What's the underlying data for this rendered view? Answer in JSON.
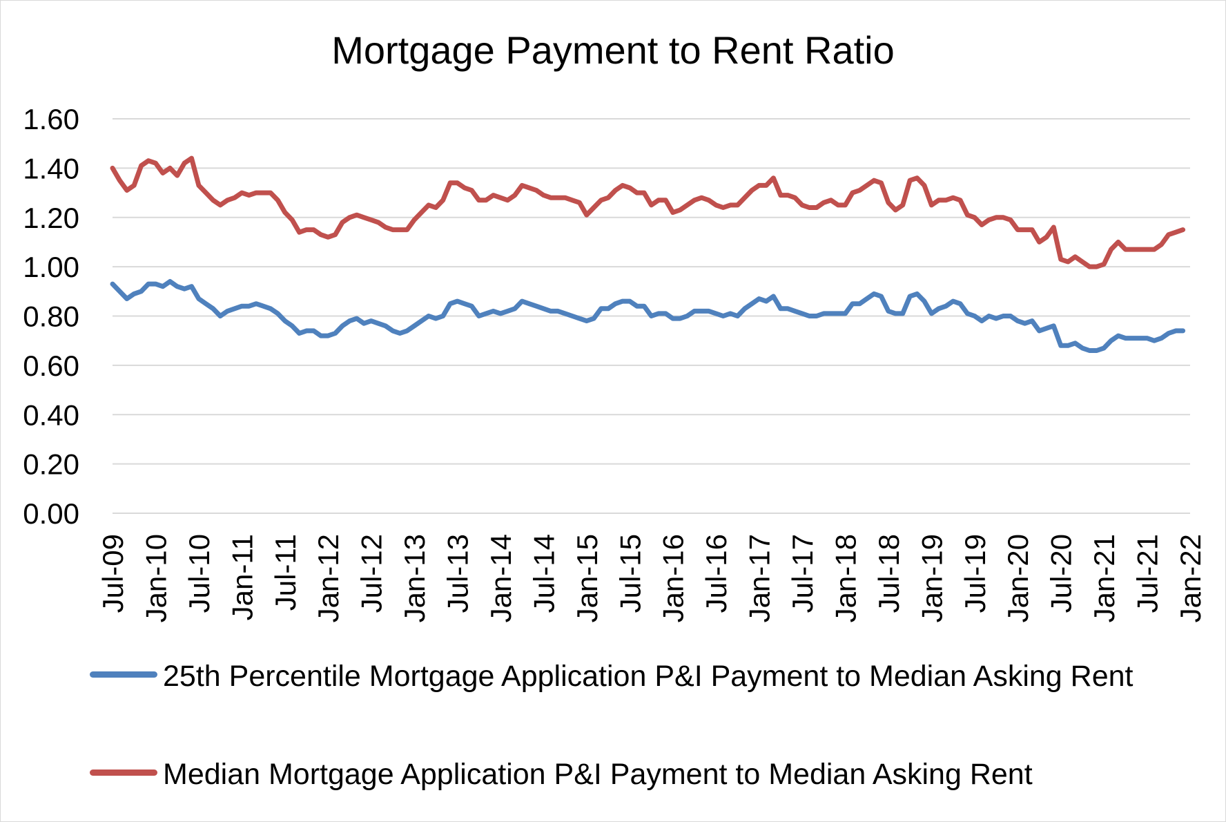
{
  "chart_data": {
    "type": "line",
    "title": "Mortgage Payment to Rent Ratio",
    "xlabel": "",
    "ylabel": "",
    "ylim": [
      0,
      1.6
    ],
    "yticks": [
      "0.00",
      "0.20",
      "0.40",
      "0.60",
      "0.80",
      "1.00",
      "1.20",
      "1.40",
      "1.60"
    ],
    "ytick_values": [
      0,
      0.2,
      0.4,
      0.6,
      0.8,
      1.0,
      1.2,
      1.4,
      1.6
    ],
    "xticks": [
      "Jul-09",
      "Jan-10",
      "Jul-10",
      "Jan-11",
      "Jul-11",
      "Jan-12",
      "Jul-12",
      "Jan-13",
      "Jul-13",
      "Jan-14",
      "Jul-14",
      "Jan-15",
      "Jul-15",
      "Jan-16",
      "Jul-16",
      "Jan-17",
      "Jul-17",
      "Jan-18",
      "Jul-18",
      "Jan-19",
      "Jul-19",
      "Jan-20",
      "Jul-20",
      "Jan-21",
      "Jul-21",
      "Jan-22"
    ],
    "x_start": "Jul-09",
    "x_end": "Dec-21",
    "grid": "horizontal",
    "legend_position": "bottom",
    "series": [
      {
        "name": "25th Percentile Mortgage Application P&I Payment to Median Asking Rent",
        "color": "#4f81bd",
        "values": [
          0.93,
          0.9,
          0.87,
          0.89,
          0.9,
          0.93,
          0.93,
          0.92,
          0.94,
          0.92,
          0.91,
          0.92,
          0.87,
          0.85,
          0.83,
          0.8,
          0.82,
          0.83,
          0.84,
          0.84,
          0.85,
          0.84,
          0.83,
          0.81,
          0.78,
          0.76,
          0.73,
          0.74,
          0.74,
          0.72,
          0.72,
          0.73,
          0.76,
          0.78,
          0.79,
          0.77,
          0.78,
          0.77,
          0.76,
          0.74,
          0.73,
          0.74,
          0.76,
          0.78,
          0.8,
          0.79,
          0.8,
          0.85,
          0.86,
          0.85,
          0.84,
          0.8,
          0.81,
          0.82,
          0.81,
          0.82,
          0.83,
          0.86,
          0.85,
          0.84,
          0.83,
          0.82,
          0.82,
          0.81,
          0.8,
          0.79,
          0.78,
          0.79,
          0.83,
          0.83,
          0.85,
          0.86,
          0.86,
          0.84,
          0.84,
          0.8,
          0.81,
          0.81,
          0.79,
          0.79,
          0.8,
          0.82,
          0.82,
          0.82,
          0.81,
          0.8,
          0.81,
          0.8,
          0.83,
          0.85,
          0.87,
          0.86,
          0.88,
          0.83,
          0.83,
          0.82,
          0.81,
          0.8,
          0.8,
          0.81,
          0.81,
          0.81,
          0.81,
          0.85,
          0.85,
          0.87,
          0.89,
          0.88,
          0.82,
          0.81,
          0.81,
          0.88,
          0.89,
          0.86,
          0.81,
          0.83,
          0.84,
          0.86,
          0.85,
          0.81,
          0.8,
          0.78,
          0.8,
          0.79,
          0.8,
          0.8,
          0.78,
          0.77,
          0.78,
          0.74,
          0.75,
          0.76,
          0.68,
          0.68,
          0.69,
          0.67,
          0.66,
          0.66,
          0.67,
          0.7,
          0.72,
          0.71,
          0.71,
          0.71,
          0.71,
          0.7,
          0.71,
          0.73,
          0.74,
          0.74
        ]
      },
      {
        "name": "Median Mortgage Application P&I Payment to Median Asking Rent",
        "color": "#c0504d",
        "values": [
          1.4,
          1.35,
          1.31,
          1.33,
          1.41,
          1.43,
          1.42,
          1.38,
          1.4,
          1.37,
          1.42,
          1.44,
          1.33,
          1.3,
          1.27,
          1.25,
          1.27,
          1.28,
          1.3,
          1.29,
          1.3,
          1.3,
          1.3,
          1.27,
          1.22,
          1.19,
          1.14,
          1.15,
          1.15,
          1.13,
          1.12,
          1.13,
          1.18,
          1.2,
          1.21,
          1.2,
          1.19,
          1.18,
          1.16,
          1.15,
          1.15,
          1.15,
          1.19,
          1.22,
          1.25,
          1.24,
          1.27,
          1.34,
          1.34,
          1.32,
          1.31,
          1.27,
          1.27,
          1.29,
          1.28,
          1.27,
          1.29,
          1.33,
          1.32,
          1.31,
          1.29,
          1.28,
          1.28,
          1.28,
          1.27,
          1.26,
          1.21,
          1.24,
          1.27,
          1.28,
          1.31,
          1.33,
          1.32,
          1.3,
          1.3,
          1.25,
          1.27,
          1.27,
          1.22,
          1.23,
          1.25,
          1.27,
          1.28,
          1.27,
          1.25,
          1.24,
          1.25,
          1.25,
          1.28,
          1.31,
          1.33,
          1.33,
          1.36,
          1.29,
          1.29,
          1.28,
          1.25,
          1.24,
          1.24,
          1.26,
          1.27,
          1.25,
          1.25,
          1.3,
          1.31,
          1.33,
          1.35,
          1.34,
          1.26,
          1.23,
          1.25,
          1.35,
          1.36,
          1.33,
          1.25,
          1.27,
          1.27,
          1.28,
          1.27,
          1.21,
          1.2,
          1.17,
          1.19,
          1.2,
          1.2,
          1.19,
          1.15,
          1.15,
          1.15,
          1.1,
          1.12,
          1.16,
          1.03,
          1.02,
          1.04,
          1.02,
          1.0,
          1.0,
          1.01,
          1.07,
          1.1,
          1.07,
          1.07,
          1.07,
          1.07,
          1.07,
          1.09,
          1.13,
          1.14,
          1.15
        ]
      }
    ]
  }
}
